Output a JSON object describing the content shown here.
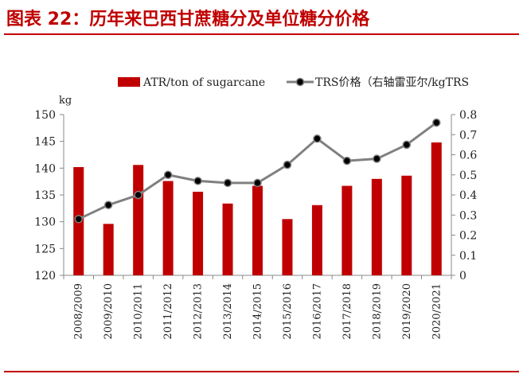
{
  "header": {
    "title": "图表 22：历年来巴西甘蔗糖分及单位糖分价格"
  },
  "chart_data": {
    "type": "bar",
    "categories": [
      "2008/2009",
      "2009/2010",
      "2010/2011",
      "2011/2012",
      "2012/2013",
      "2013/2014",
      "2014/2015",
      "2015/2016",
      "2016/2017",
      "2017/2018",
      "2018/2019",
      "2019/2020",
      "2020/2021"
    ],
    "series": [
      {
        "name": "ATR/ton of sugarcane",
        "type": "bar",
        "axis": "left",
        "color": "#c00000",
        "values": [
          140.2,
          129.6,
          140.6,
          137.6,
          135.6,
          133.4,
          136.7,
          130.5,
          133.1,
          136.7,
          138.0,
          138.6,
          144.8
        ]
      },
      {
        "name": "TRS价格（右轴雷亚尔/kgTRS",
        "type": "line",
        "axis": "right",
        "color": "#808080",
        "marker_color": "#000000",
        "values": [
          0.28,
          0.35,
          0.4,
          0.5,
          0.47,
          0.46,
          0.46,
          0.55,
          0.68,
          0.57,
          0.58,
          0.65,
          0.76
        ]
      }
    ],
    "ylabel": "kg",
    "ylim": [
      120,
      150
    ],
    "yticks": [
      120,
      125,
      130,
      135,
      140,
      145,
      150
    ],
    "y2lim": [
      0,
      0.8
    ],
    "y2ticks": [
      0,
      0.1,
      0.2,
      0.3,
      0.4,
      0.5,
      0.6,
      0.7,
      0.8
    ],
    "grid": false,
    "legend_position": "top"
  }
}
